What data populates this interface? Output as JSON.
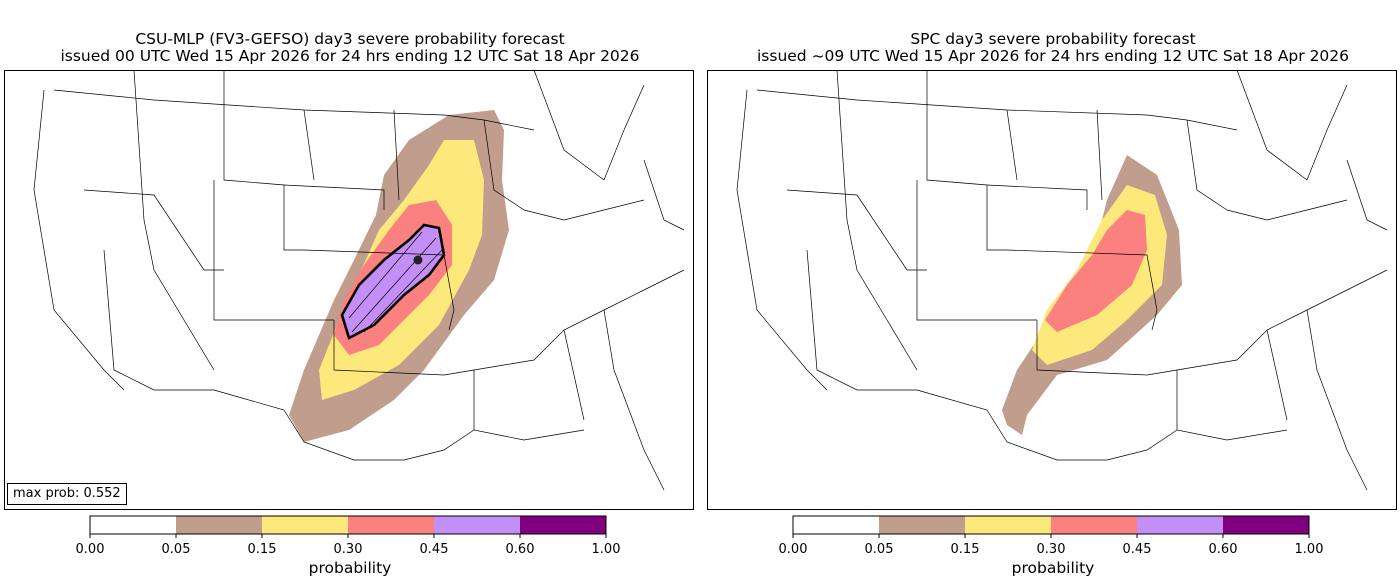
{
  "left_panel": {
    "title_line1": "CSU-MLP (FV3-GEFSO) day3 severe probability forecast",
    "title_line2": "issued 00 UTC Wed 15 Apr 2026 for 24 hrs ending 12 UTC Sat 18 Apr 2026",
    "max_prob_label": "max prob: 0.552"
  },
  "right_panel": {
    "title_line1": "SPC day3 severe probability forecast",
    "title_line2": "issued ~09 UTC Wed 15 Apr 2026 for 24 hrs ending 12 UTC Sat 18 Apr 2026"
  },
  "colorbar": {
    "label": "probability",
    "bins": [
      {
        "from": "0.00",
        "to": "0.05",
        "color": "#ffffff"
      },
      {
        "from": "0.05",
        "to": "0.15",
        "color": "#c09d8c"
      },
      {
        "from": "0.15",
        "to": "0.30",
        "color": "#fde87b"
      },
      {
        "from": "0.30",
        "to": "0.45",
        "color": "#fb8080"
      },
      {
        "from": "0.45",
        "to": "0.60",
        "color": "#c38ef5"
      },
      {
        "from": "0.60",
        "to": "1.00",
        "color": "#7f007f"
      }
    ],
    "ticks": [
      "0.00",
      "0.05",
      "0.15",
      "0.30",
      "0.45",
      "0.60",
      "1.00"
    ]
  }
}
